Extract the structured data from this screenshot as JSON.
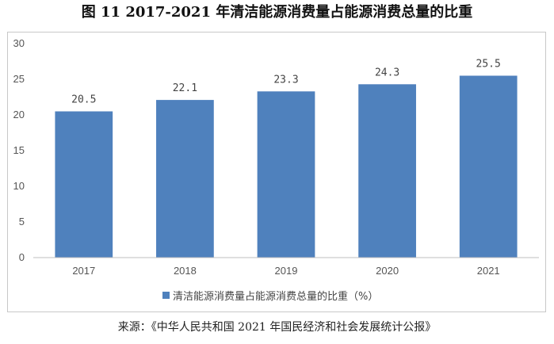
{
  "title": "图 11 2017-2021 年清洁能源消费量占能源消费总量的比重",
  "source": "来源：《中华人民共和国 2021 年国民经济和社会发展统计公报》",
  "colors": {
    "bar": "#4f81bd",
    "axis": "#bfbfbf",
    "grid": "#e0e0e0"
  },
  "chart_data": {
    "type": "bar",
    "title": "图 11 2017-2021 年清洁能源消费量占能源消费总量的比重",
    "categories": [
      "2017",
      "2018",
      "2019",
      "2020",
      "2021"
    ],
    "series": [
      {
        "name": "清洁能源消费量占能源消费总量的比重（%）",
        "values": [
          20.5,
          22.1,
          23.3,
          24.3,
          25.5
        ]
      }
    ],
    "value_labels": [
      "20.5",
      "22.1",
      "23.3",
      "24.3",
      "25.5"
    ],
    "ylim": [
      0,
      30
    ],
    "yticks": [
      0,
      5,
      10,
      15,
      20,
      25,
      30
    ],
    "grid": false,
    "legend_position": "bottom"
  }
}
